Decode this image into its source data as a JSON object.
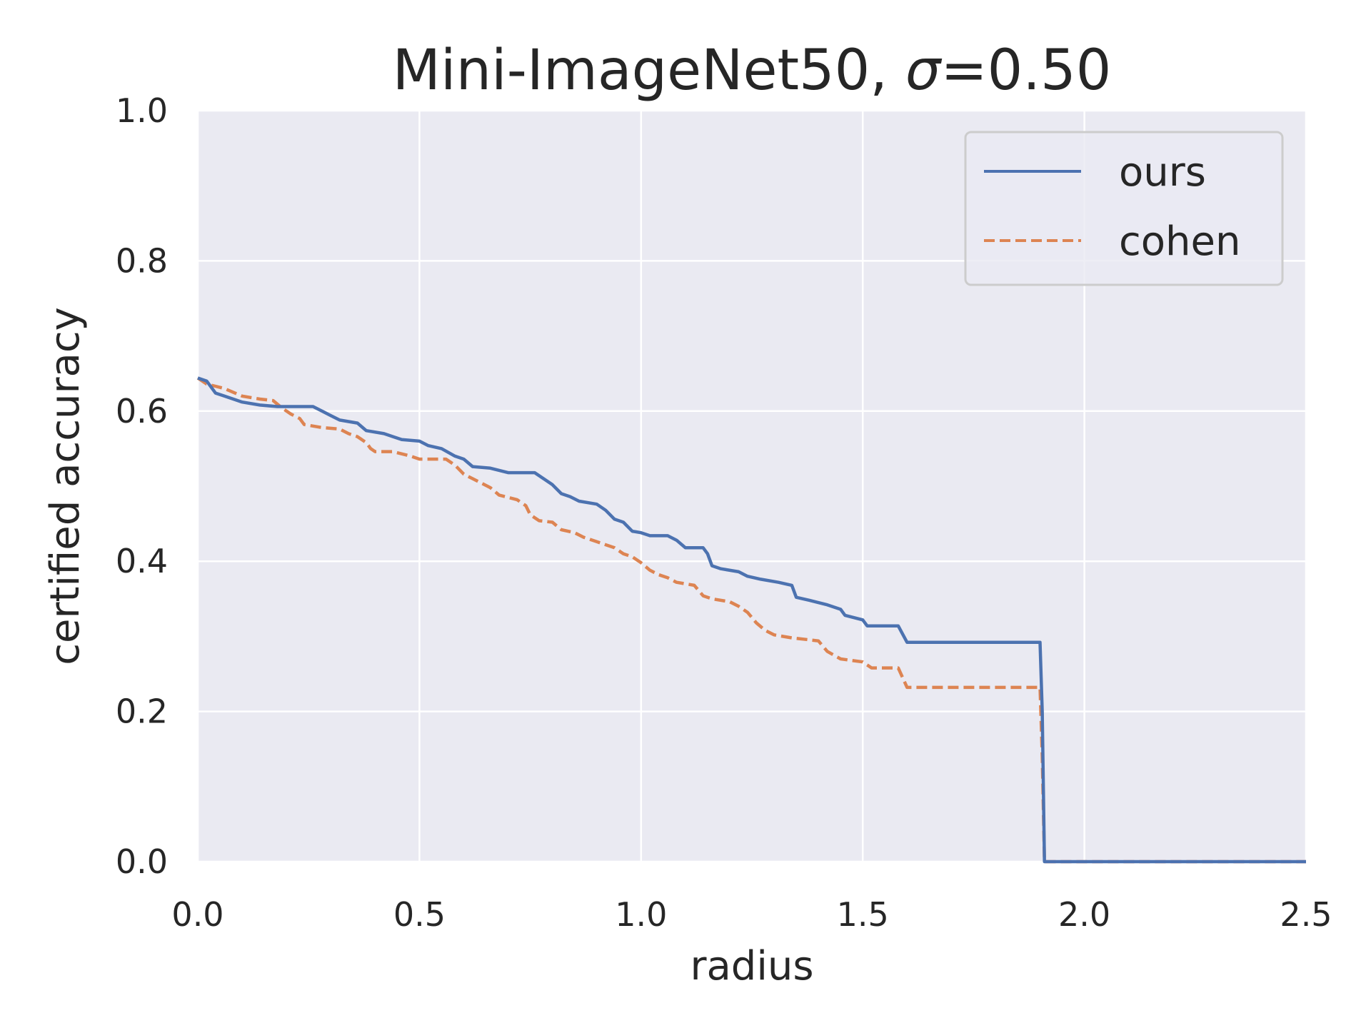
{
  "chart_data": {
    "type": "line",
    "title": "Mini-ImageNet50, σ=0.50",
    "title_prefix": "Mini-ImageNet50, ",
    "title_sigma": "σ",
    "title_suffix": "=0.50",
    "xlabel": "radius",
    "ylabel": "certified accuracy",
    "xlim": [
      0.0,
      2.5
    ],
    "ylim": [
      0.0,
      1.0
    ],
    "xticks": [
      "0.0",
      "0.5",
      "1.0",
      "1.5",
      "2.0",
      "2.5"
    ],
    "yticks": [
      "0.0",
      "0.2",
      "0.4",
      "0.6",
      "0.8",
      "1.0"
    ],
    "grid": true,
    "legend_position": "top-right",
    "series": [
      {
        "name": "ours",
        "color": "#4c72b0",
        "linestyle": "solid",
        "points": [
          [
            0.0,
            0.644
          ],
          [
            0.02,
            0.64
          ],
          [
            0.04,
            0.624
          ],
          [
            0.06,
            0.62
          ],
          [
            0.08,
            0.616
          ],
          [
            0.1,
            0.612
          ],
          [
            0.14,
            0.608
          ],
          [
            0.18,
            0.606
          ],
          [
            0.26,
            0.606
          ],
          [
            0.28,
            0.6
          ],
          [
            0.3,
            0.594
          ],
          [
            0.32,
            0.588
          ],
          [
            0.36,
            0.584
          ],
          [
            0.38,
            0.574
          ],
          [
            0.42,
            0.57
          ],
          [
            0.44,
            0.566
          ],
          [
            0.46,
            0.562
          ],
          [
            0.5,
            0.56
          ],
          [
            0.52,
            0.554
          ],
          [
            0.55,
            0.55
          ],
          [
            0.58,
            0.54
          ],
          [
            0.6,
            0.536
          ],
          [
            0.62,
            0.526
          ],
          [
            0.66,
            0.524
          ],
          [
            0.7,
            0.518
          ],
          [
            0.76,
            0.518
          ],
          [
            0.78,
            0.51
          ],
          [
            0.8,
            0.502
          ],
          [
            0.82,
            0.49
          ],
          [
            0.84,
            0.486
          ],
          [
            0.86,
            0.48
          ],
          [
            0.9,
            0.476
          ],
          [
            0.92,
            0.468
          ],
          [
            0.94,
            0.456
          ],
          [
            0.96,
            0.452
          ],
          [
            0.98,
            0.44
          ],
          [
            1.0,
            0.438
          ],
          [
            1.02,
            0.434
          ],
          [
            1.06,
            0.434
          ],
          [
            1.08,
            0.428
          ],
          [
            1.1,
            0.418
          ],
          [
            1.14,
            0.418
          ],
          [
            1.15,
            0.41
          ],
          [
            1.16,
            0.394
          ],
          [
            1.18,
            0.39
          ],
          [
            1.22,
            0.386
          ],
          [
            1.24,
            0.38
          ],
          [
            1.27,
            0.376
          ],
          [
            1.31,
            0.372
          ],
          [
            1.34,
            0.368
          ],
          [
            1.35,
            0.352
          ],
          [
            1.38,
            0.348
          ],
          [
            1.42,
            0.342
          ],
          [
            1.45,
            0.336
          ],
          [
            1.46,
            0.328
          ],
          [
            1.5,
            0.322
          ],
          [
            1.51,
            0.314
          ],
          [
            1.58,
            0.314
          ],
          [
            1.6,
            0.292
          ],
          [
            1.9,
            0.292
          ],
          [
            1.905,
            0.2
          ],
          [
            1.91,
            0.0
          ],
          [
            2.5,
            0.0
          ]
        ]
      },
      {
        "name": "cohen",
        "color": "#dd8452",
        "linestyle": "dashed",
        "points": [
          [
            0.0,
            0.644
          ],
          [
            0.02,
            0.636
          ],
          [
            0.06,
            0.63
          ],
          [
            0.1,
            0.62
          ],
          [
            0.14,
            0.616
          ],
          [
            0.17,
            0.614
          ],
          [
            0.19,
            0.604
          ],
          [
            0.21,
            0.596
          ],
          [
            0.23,
            0.59
          ],
          [
            0.24,
            0.582
          ],
          [
            0.28,
            0.578
          ],
          [
            0.32,
            0.576
          ],
          [
            0.34,
            0.57
          ],
          [
            0.36,
            0.566
          ],
          [
            0.38,
            0.558
          ],
          [
            0.39,
            0.55
          ],
          [
            0.4,
            0.546
          ],
          [
            0.44,
            0.546
          ],
          [
            0.48,
            0.54
          ],
          [
            0.5,
            0.536
          ],
          [
            0.56,
            0.536
          ],
          [
            0.58,
            0.528
          ],
          [
            0.6,
            0.516
          ],
          [
            0.62,
            0.51
          ],
          [
            0.66,
            0.498
          ],
          [
            0.68,
            0.488
          ],
          [
            0.72,
            0.482
          ],
          [
            0.74,
            0.474
          ],
          [
            0.75,
            0.462
          ],
          [
            0.77,
            0.454
          ],
          [
            0.8,
            0.452
          ],
          [
            0.82,
            0.442
          ],
          [
            0.85,
            0.438
          ],
          [
            0.87,
            0.432
          ],
          [
            0.9,
            0.426
          ],
          [
            0.94,
            0.418
          ],
          [
            0.96,
            0.41
          ],
          [
            0.98,
            0.406
          ],
          [
            1.0,
            0.398
          ],
          [
            1.02,
            0.388
          ],
          [
            1.04,
            0.382
          ],
          [
            1.06,
            0.378
          ],
          [
            1.08,
            0.372
          ],
          [
            1.12,
            0.368
          ],
          [
            1.14,
            0.354
          ],
          [
            1.16,
            0.35
          ],
          [
            1.2,
            0.346
          ],
          [
            1.22,
            0.34
          ],
          [
            1.24,
            0.332
          ],
          [
            1.26,
            0.318
          ],
          [
            1.28,
            0.308
          ],
          [
            1.3,
            0.302
          ],
          [
            1.34,
            0.298
          ],
          [
            1.4,
            0.294
          ],
          [
            1.42,
            0.28
          ],
          [
            1.45,
            0.27
          ],
          [
            1.5,
            0.266
          ],
          [
            1.52,
            0.258
          ],
          [
            1.58,
            0.258
          ],
          [
            1.6,
            0.232
          ],
          [
            1.9,
            0.232
          ],
          [
            1.905,
            0.14
          ],
          [
            1.91,
            0.0
          ],
          [
            2.5,
            0.0
          ]
        ]
      }
    ]
  },
  "colors": {
    "plot_background": "#eaeaf2",
    "grid": "#ffffff",
    "legend_background": "#eaeaf2",
    "legend_border": "#cccccc",
    "text": "#262626"
  }
}
